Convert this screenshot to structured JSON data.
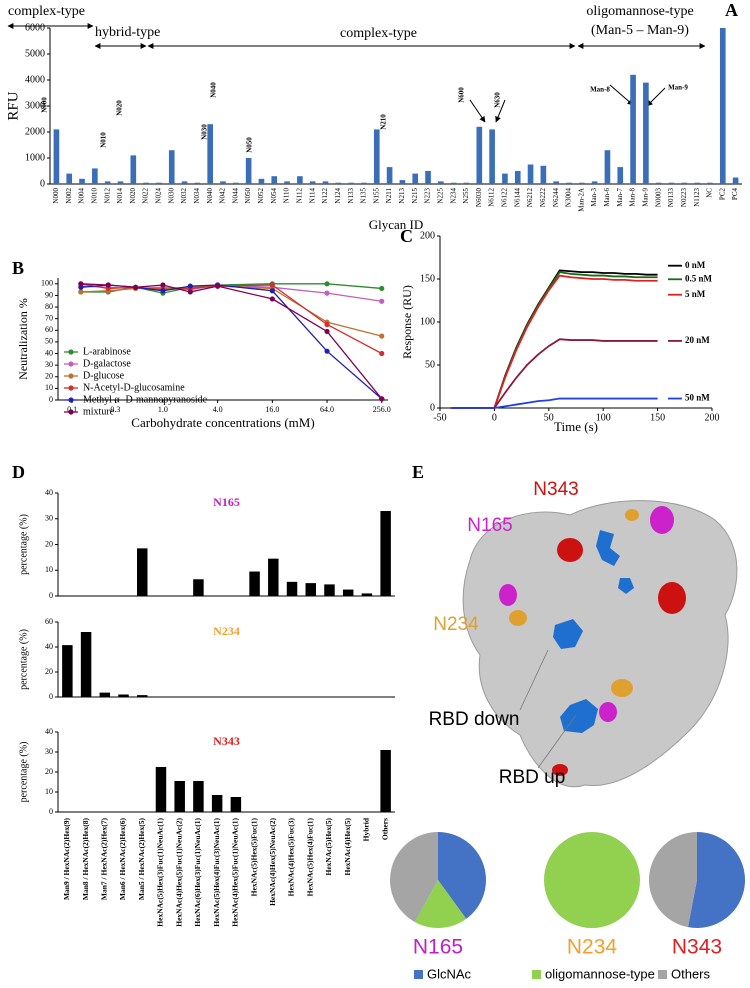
{
  "chart_data": [
    {
      "type": "bar",
      "panel_label": "A",
      "ylabel": "RFU",
      "xlabel": "Glycan ID",
      "color": "#3a6fb8",
      "categories": [
        "N000",
        "N002",
        "N004",
        "N010",
        "N012",
        "N014",
        "N020",
        "N022",
        "N024",
        "N030",
        "N032",
        "N034",
        "N040",
        "N042",
        "N044",
        "N050",
        "N052",
        "N054",
        "N110",
        "N112",
        "N114",
        "N122",
        "N124",
        "N133",
        "N135",
        "N155",
        "N211",
        "N213",
        "N215",
        "N223",
        "N225",
        "N234",
        "N255",
        "N6030",
        "N6112",
        "N6122",
        "N6144",
        "N6212",
        "N6222",
        "N6244",
        "N3004",
        "Man-2A",
        "Man-3",
        "Man-6",
        "Man-7",
        "Man-8",
        "Man-9",
        "N0003",
        "N0133",
        "N0223",
        "N1123",
        "NC",
        "PC2",
        "PC4"
      ],
      "values": [
        2100,
        400,
        200,
        600,
        100,
        100,
        1100,
        50,
        50,
        1300,
        100,
        50,
        2300,
        100,
        50,
        1000,
        200,
        300,
        100,
        300,
        100,
        100,
        50,
        50,
        50,
        2100,
        650,
        150,
        400,
        500,
        100,
        50,
        50,
        2200,
        2100,
        400,
        500,
        750,
        700,
        100,
        50,
        50,
        100,
        1300,
        650,
        4200,
        3900,
        50,
        50,
        50,
        50,
        50,
        6000,
        250
      ],
      "ylim": [
        0,
        6000
      ],
      "yticks": [
        0,
        1000,
        2000,
        3000,
        4000,
        5000,
        6000
      ],
      "annotations": [
        "complex-type",
        "hybrid-type",
        "complex-type",
        "oligomannose-type",
        "(Man-5 – Man-9)"
      ],
      "glycan_labels": [
        "N000",
        "N010",
        "N020",
        "N030",
        "N040",
        "N050",
        "N210",
        "N600",
        "N630",
        "Man-8",
        "Man-9"
      ]
    },
    {
      "type": "line",
      "panel_label": "B",
      "ylabel": "Neutralization %",
      "xlabel": "Carbohydrate concentrations (mM)",
      "xscale": "log",
      "x": [
        0.125,
        0.25,
        0.5,
        1,
        2,
        4,
        16,
        64,
        256
      ],
      "xlim": [
        0.07,
        300
      ],
      "xticks": [
        0.1,
        0.3,
        {
          "value": 1,
          "label": "1.0"
        },
        {
          "value": 4,
          "label": "4.0"
        },
        {
          "value": 16,
          "label": "16.0"
        },
        {
          "value": 64,
          "label": "64.0"
        },
        {
          "value": 256,
          "label": "256.0"
        }
      ],
      "ylim": [
        0,
        105
      ],
      "yticks": [
        0,
        10,
        20,
        30,
        40,
        50,
        60,
        70,
        80,
        90,
        100
      ],
      "legend": "left",
      "markers": true,
      "series": [
        {
          "name": "L-arabinose",
          "color": "#2e8b2e",
          "values": [
            93,
            93,
            97,
            92,
            97,
            99,
            100,
            100,
            96
          ]
        },
        {
          "name": "D-galactose",
          "color": "#c060c0",
          "values": [
            98,
            97,
            96,
            97,
            95,
            99,
            97,
            92,
            85
          ]
        },
        {
          "name": "D-glucose",
          "color": "#c07030",
          "values": [
            93,
            94,
            96,
            96,
            97,
            98,
            96,
            67,
            55
          ]
        },
        {
          "name": "N-Acetyl-D-glucosamine",
          "color": "#d03030",
          "values": [
            100,
            96,
            97,
            95,
            96,
            98,
            99,
            65,
            40
          ]
        },
        {
          "name": "Methyl α -D-mannopyranoside",
          "color": "#2020b0",
          "values": [
            97,
            99,
            97,
            94,
            98,
            99,
            94,
            42,
            1
          ]
        },
        {
          "name": "mixture",
          "color": "#800050",
          "values": [
            100,
            99,
            97,
            99,
            93,
            98,
            87,
            59,
            1
          ]
        }
      ]
    },
    {
      "type": "line",
      "panel_label": "C",
      "ylabel": "Response (RU)",
      "xlabel": "Time (s)",
      "x": [
        -40,
        -30,
        -20,
        -10,
        0,
        10,
        20,
        30,
        40,
        50,
        60,
        70,
        80,
        90,
        100,
        110,
        120,
        130,
        140,
        150
      ],
      "xlim": [
        -50,
        200
      ],
      "xticks": [
        -50,
        0,
        50,
        100,
        150,
        200
      ],
      "ylim": [
        0,
        200
      ],
      "yticks": [
        0,
        50,
        100,
        150,
        200
      ],
      "legend": "right",
      "markers": false,
      "series": [
        {
          "name": "0 nM",
          "color": "#000000",
          "values": [
            0,
            0,
            0,
            0,
            0,
            38,
            70,
            97,
            120,
            140,
            160,
            159,
            158,
            158,
            157,
            157,
            156,
            156,
            155,
            155
          ]
        },
        {
          "name": "0.5 nM",
          "color": "#1a6a1a",
          "values": [
            0,
            0,
            0,
            0,
            0,
            37,
            69,
            96,
            119,
            139,
            158,
            156,
            155,
            154,
            154,
            153,
            153,
            152,
            152,
            152
          ]
        },
        {
          "name": "5 nM",
          "color": "#e02020",
          "values": [
            0,
            0,
            0,
            0,
            0,
            36,
            67,
            94,
            117,
            137,
            154,
            152,
            151,
            150,
            150,
            149,
            149,
            148,
            148,
            148
          ]
        },
        {
          "name": "20 nM",
          "color": "#8a1840",
          "values": [
            0,
            0,
            0,
            0,
            0,
            18,
            35,
            50,
            62,
            72,
            80,
            79,
            79,
            79,
            78,
            78,
            78,
            78,
            78,
            78
          ]
        },
        {
          "name": "50 nM",
          "color": "#2040e0",
          "values": [
            0,
            0,
            0,
            0,
            0,
            2,
            4,
            6,
            8,
            9,
            11,
            11,
            11,
            11,
            11,
            11,
            11,
            11,
            11,
            11
          ]
        }
      ]
    },
    {
      "type": "bar",
      "panel_label": "D",
      "title": "N165",
      "title_color": "#c020c0",
      "ylabel": "percentage (%)",
      "color": "#000000",
      "values": [
        0,
        0,
        0,
        0,
        18.5,
        0,
        0,
        6.5,
        0,
        0,
        9.5,
        14.5,
        5.5,
        5,
        4.5,
        2.5,
        1,
        33
      ],
      "ylim": [
        0,
        40
      ],
      "yticks": [
        0,
        10,
        20,
        30,
        40
      ]
    },
    {
      "type": "bar",
      "title": "N234",
      "title_color": "#f0a030",
      "ylabel": "percentage (%)",
      "color": "#000000",
      "values": [
        41.5,
        52,
        3.5,
        2,
        1.5,
        0,
        0,
        0,
        0,
        0,
        0,
        0,
        0,
        0,
        0,
        0,
        0,
        0
      ],
      "ylim": [
        0,
        60
      ],
      "yticks": [
        0,
        20,
        40,
        60
      ]
    },
    {
      "type": "bar",
      "title": "N343",
      "title_color": "#dd2020",
      "ylabel": "percentage (%)",
      "color": "#000000",
      "categories": [
        "Man9 / HexNAc(2)Hex(9)",
        "Man8 / HexNAc(2)Hex(8)",
        "Man7 / HexNAc(2)Hex(7)",
        "Man6 / HexNAc(2)Hex(6)",
        "Man5 / HexNAc(2)Hex(5)",
        "HexNAc(5)Hex(3)Fuc(1)NeuAc(1)",
        "HexNAc(4)Hex(5)Fuc(1)NeuAc(2)",
        "HexNAc(6)Hex(3)Fuc(1)NeuAc(1)",
        "HexNAc(5)Hex(4)Fuc(3)NeuAc(1)",
        "HexNAc(4)Hex(5)Fuc(1)NeuAc(1)",
        "HexNAc(5)Hex(5)Fuc(1)",
        "HexNAc(4)Hex(5)NeuAc(2)",
        "HexNAc(4)Hex(5)Fuc(3)",
        "HexNAc(5)Hex(4)Fuc(1)",
        "HexNAc(5)Hex(5)",
        "HexNAc(4)Hex(5)",
        "Hybrid",
        "Others"
      ],
      "values": [
        0,
        0,
        0,
        0,
        0,
        22.5,
        15.5,
        15.5,
        8.5,
        7.5,
        0,
        0,
        0,
        0,
        0,
        0,
        0,
        31
      ],
      "ylim": [
        0,
        40
      ],
      "yticks": [
        0,
        10,
        20,
        30,
        40
      ]
    },
    {
      "type": "pie",
      "title": "N165",
      "title_color": "#c020c0",
      "categories": [
        "GlcNAc",
        "oligomannose-type",
        "Others"
      ],
      "colors": [
        "#4472c4",
        "#92d050",
        "#a5a5a5"
      ],
      "values": [
        40,
        18,
        42
      ]
    },
    {
      "type": "pie",
      "title": "N234",
      "title_color": "#f0a030",
      "values": [
        0,
        100,
        0
      ]
    },
    {
      "type": "pie",
      "title": "N343",
      "title_color": "#dd2020",
      "values": [
        53,
        0,
        47
      ]
    }
  ],
  "structure_image": {
    "panel_label": "E",
    "labels": [
      "N343",
      "N165",
      "N234",
      "RBD down",
      "RBD up"
    ]
  }
}
